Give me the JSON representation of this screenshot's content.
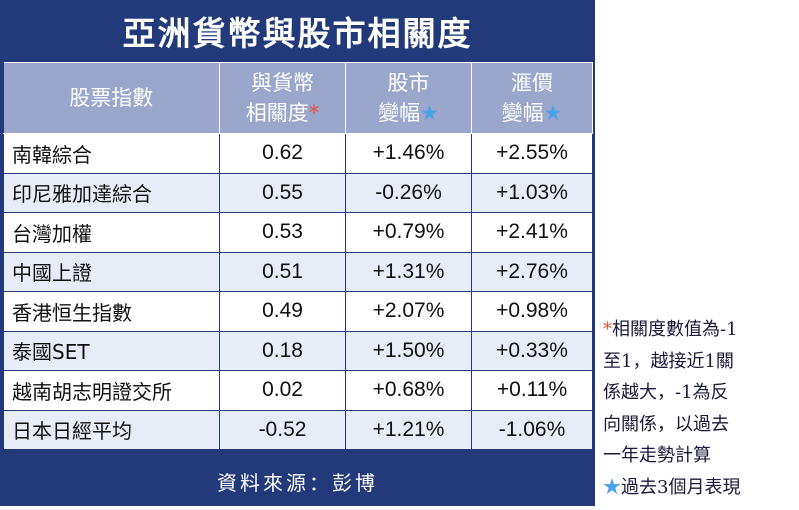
{
  "title": "亞洲貨幣與股市相關度",
  "headers": {
    "stock": "股票指數",
    "corr_line1": "與貨幣",
    "corr_line2": "相關度",
    "corr_mark": "*",
    "stock_change_line1": "股市",
    "stock_change_line2": "變幅",
    "stock_change_mark": "★",
    "fx_change_line1": "滙價",
    "fx_change_line2": "變幅",
    "fx_change_mark": "★"
  },
  "rows": [
    {
      "name": "南韓綜合",
      "corr": "0.62",
      "stock": "+1.46%",
      "fx": "+2.55%"
    },
    {
      "name": "印尼雅加達綜合",
      "corr": "0.55",
      "stock": "-0.26%",
      "fx": "+1.03%"
    },
    {
      "name": "台灣加權",
      "corr": "0.53",
      "stock": "+0.79%",
      "fx": "+2.41%"
    },
    {
      "name": "中國上證",
      "corr": "0.51",
      "stock": "+1.31%",
      "fx": "+2.76%"
    },
    {
      "name": "香港恒生指數",
      "corr": "0.49",
      "stock": "+2.07%",
      "fx": "+0.98%"
    },
    {
      "name": "泰國SET",
      "corr": "0.18",
      "stock": "+1.50%",
      "fx": "+0.33%"
    },
    {
      "name": "越南胡志明證交所",
      "corr": "0.02",
      "stock": "+0.68%",
      "fx": "+0.11%"
    },
    {
      "name": "日本日經平均",
      "corr": "-0.52",
      "stock": "+1.21%",
      "fx": "-1.06%"
    }
  ],
  "source": "資料來源：彭博",
  "notes": {
    "corr_mark": "*",
    "corr_lines": [
      "相關度數值為-1",
      "至1，越接近1關",
      "係越大，-1為反",
      "向關係，以過去",
      "一年走勢計算"
    ],
    "period_mark": "★",
    "period_text": "過去3個月表現"
  },
  "colors": {
    "navy": "#22397a",
    "header": "#9aa6cc",
    "stripe": "#e7ecf6",
    "red_star": "#e8503a",
    "blue_star": "#4aa3e6"
  }
}
